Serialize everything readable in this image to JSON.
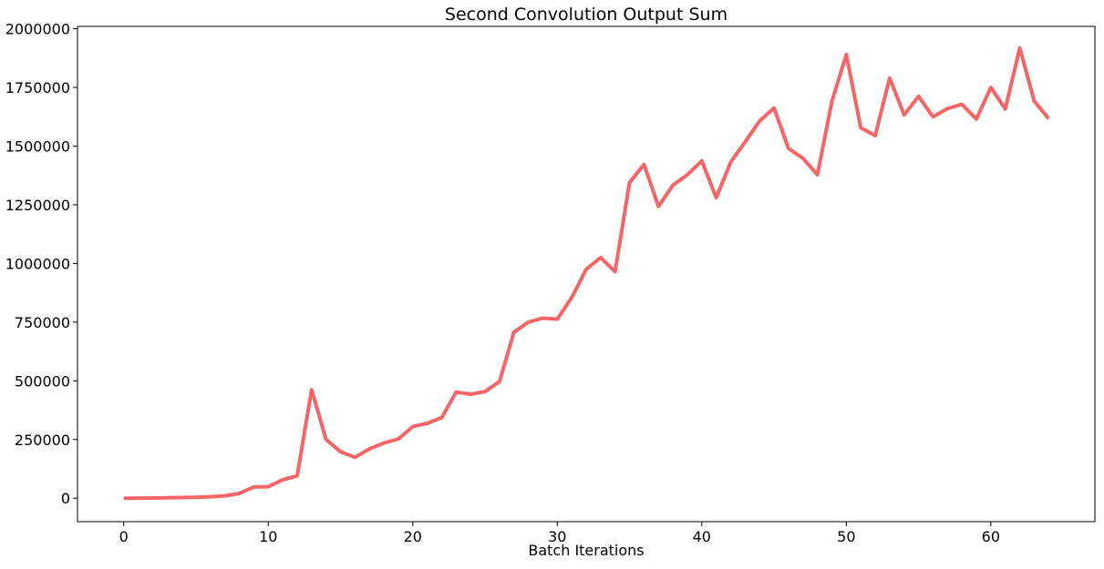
{
  "chart_data": {
    "type": "line",
    "title": "Second Convolution Output Sum",
    "xlabel": "Batch Iterations",
    "ylabel": "",
    "xlim": [
      -3.2,
      67.2
    ],
    "ylim": [
      -100000,
      2010000
    ],
    "x_ticks": [
      0,
      10,
      20,
      30,
      40,
      50,
      60
    ],
    "x_tick_labels": [
      "0",
      "10",
      "20",
      "30",
      "40",
      "50",
      "60"
    ],
    "y_ticks": [
      0,
      250000,
      500000,
      750000,
      1000000,
      1250000,
      1500000,
      1750000,
      2000000
    ],
    "y_tick_labels": [
      "0",
      "250000",
      "500000",
      "750000",
      "1000000",
      "1250000",
      "1500000",
      "1750000",
      "2000000"
    ],
    "grid": false,
    "series": [
      {
        "color": "#f56565",
        "x": [
          0,
          1,
          2,
          3,
          4,
          5,
          6,
          7,
          8,
          9,
          10,
          11,
          12,
          13,
          14,
          15,
          16,
          17,
          18,
          19,
          20,
          21,
          22,
          23,
          24,
          25,
          26,
          27,
          28,
          29,
          30,
          31,
          32,
          33,
          34,
          35,
          36,
          37,
          38,
          39,
          40,
          41,
          42,
          43,
          44,
          45,
          46,
          47,
          48,
          49,
          50,
          51,
          52,
          53,
          54,
          55,
          56,
          57,
          58,
          59,
          60,
          61,
          62,
          63,
          64
        ],
        "values": [
          0,
          0,
          1000,
          2000,
          3000,
          4000,
          6000,
          10000,
          20000,
          48000,
          49000,
          78000,
          95000,
          462000,
          250000,
          198000,
          174000,
          210000,
          235000,
          252000,
          305000,
          319000,
          343000,
          452000,
          443000,
          454000,
          497000,
          707000,
          750000,
          767000,
          763000,
          855000,
          975000,
          1025000,
          965000,
          1345000,
          1422000,
          1243000,
          1333000,
          1378000,
          1437000,
          1280000,
          1432000,
          1518000,
          1607000,
          1662000,
          1490000,
          1448000,
          1378000,
          1690000,
          1890000,
          1578000,
          1545000,
          1790000,
          1633000,
          1712000,
          1625000,
          1660000,
          1678000,
          1615000,
          1750000,
          1658000,
          1918000,
          1692000,
          1617000
        ]
      }
    ]
  }
}
